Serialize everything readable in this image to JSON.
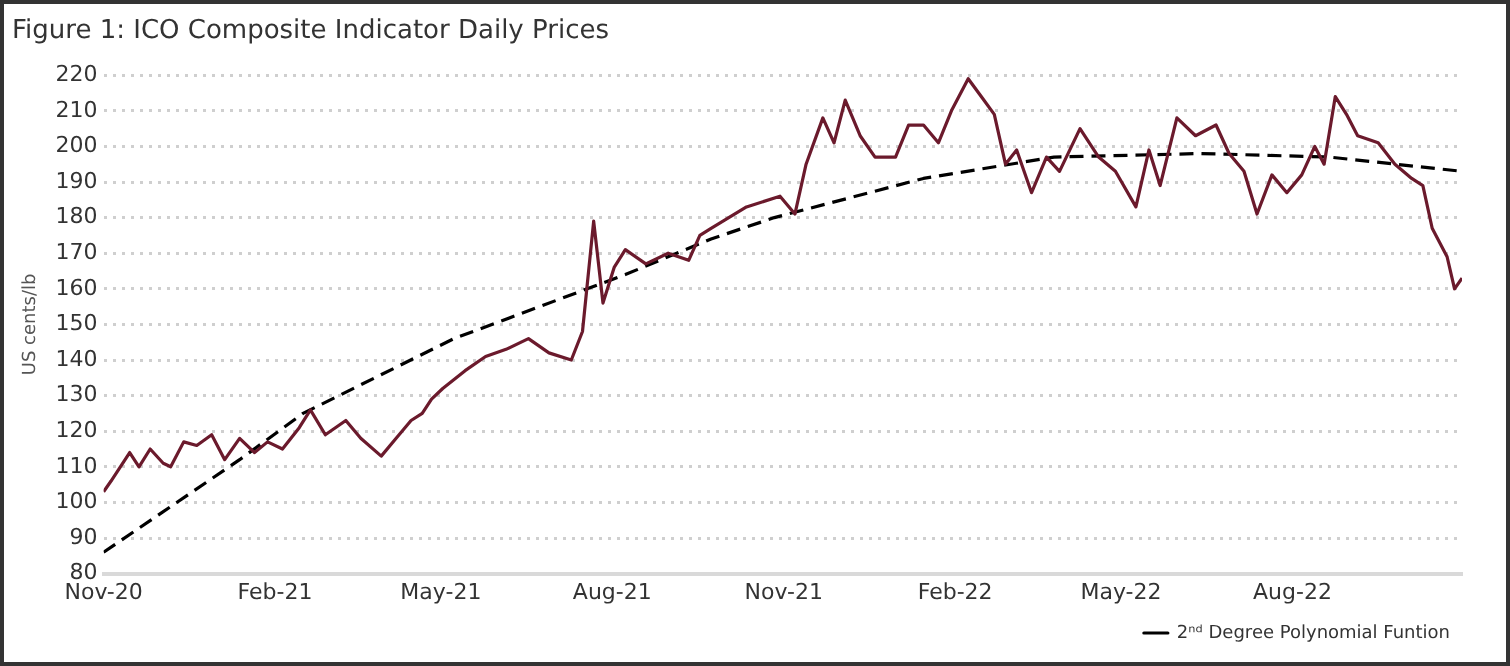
{
  "chart_data": {
    "type": "line",
    "title": "Figure 1: ICO Composite Indicator Daily Prices",
    "ylabel": "US cents/lb",
    "xlim": [
      "2020-11-01",
      "2022-10-31"
    ],
    "xticks": [
      {
        "value": "2020-11-01",
        "label": "Nov-20"
      },
      {
        "value": "2021-02-01",
        "label": "Feb-21"
      },
      {
        "value": "2021-05-01",
        "label": "May-21"
      },
      {
        "value": "2021-08-01",
        "label": "Aug-21"
      },
      {
        "value": "2021-11-01",
        "label": "Nov-21"
      },
      {
        "value": "2022-02-01",
        "label": "Feb-22"
      },
      {
        "value": "2022-05-01",
        "label": "May-22"
      },
      {
        "value": "2022-08-01",
        "label": "Aug-22"
      }
    ],
    "ylim": [
      80,
      220
    ],
    "yticks": [
      80,
      90,
      100,
      110,
      120,
      130,
      140,
      150,
      160,
      170,
      180,
      190,
      200,
      210,
      220
    ],
    "grid": "y",
    "legend": "bottom right",
    "marker": "none",
    "series": [
      {
        "color": "#6b1a2c",
        "line_style": "solid",
        "x": [
          "2020-11-01",
          "2020-11-05",
          "2020-11-15",
          "2020-11-20",
          "2020-11-26",
          "2020-12-03",
          "2020-12-07",
          "2020-12-14",
          "2020-12-21",
          "2020-12-29",
          "2021-01-05",
          "2021-01-13",
          "2021-01-21",
          "2021-01-28",
          "2021-02-05",
          "2021-02-14",
          "2021-02-20",
          "2021-02-28",
          "2021-03-11",
          "2021-03-19",
          "2021-03-30",
          "2021-04-07",
          "2021-04-15",
          "2021-04-21",
          "2021-04-26",
          "2021-05-02",
          "2021-05-14",
          "2021-05-25",
          "2021-06-05",
          "2021-06-17",
          "2021-06-28",
          "2021-07-10",
          "2021-07-16",
          "2021-07-22",
          "2021-07-27",
          "2021-08-02",
          "2021-08-08",
          "2021-08-19",
          "2021-08-31",
          "2021-09-11",
          "2021-09-17",
          "2021-09-23",
          "2021-10-12",
          "2021-10-30",
          "2021-11-07",
          "2021-11-13",
          "2021-11-22",
          "2021-11-28",
          "2021-12-04",
          "2021-12-12",
          "2021-12-20",
          "2021-12-31",
          "2022-01-07",
          "2022-01-15",
          "2022-01-23",
          "2022-01-30",
          "2022-02-08",
          "2022-02-15",
          "2022-02-22",
          "2022-02-28",
          "2022-03-06",
          "2022-03-14",
          "2022-03-22",
          "2022-03-29",
          "2022-04-09",
          "2022-04-19",
          "2022-04-28",
          "2022-05-09",
          "2022-05-16",
          "2022-05-22",
          "2022-05-31",
          "2022-06-10",
          "2022-06-21",
          "2022-06-28",
          "2022-07-06",
          "2022-07-13",
          "2022-07-21",
          "2022-07-29",
          "2022-08-06",
          "2022-08-13",
          "2022-08-18",
          "2022-08-24",
          "2022-08-30",
          "2022-09-05",
          "2022-09-16",
          "2022-09-25",
          "2022-10-04",
          "2022-10-10",
          "2022-10-15",
          "2022-10-23",
          "2022-10-27",
          "2022-10-31"
        ],
        "values": [
          103,
          106,
          114,
          110,
          115,
          111,
          110,
          117,
          116,
          119,
          112,
          118,
          114,
          117,
          115,
          121,
          126,
          119,
          123,
          118,
          113,
          118,
          123,
          125,
          129,
          132,
          137,
          141,
          143,
          146,
          142,
          140,
          148,
          179,
          156,
          166,
          171,
          167,
          170,
          168,
          175,
          177,
          183,
          186,
          181,
          195,
          208,
          201,
          213,
          203,
          197,
          197,
          206,
          206,
          201,
          210,
          219,
          214,
          209,
          195,
          199,
          187,
          197,
          193,
          205,
          197,
          193,
          183,
          199,
          189,
          208,
          203,
          206,
          198,
          193,
          181,
          192,
          187,
          192,
          200,
          195,
          214,
          209,
          203,
          201,
          195,
          191,
          189,
          177,
          169,
          160,
          163
        ]
      },
      {
        "name": "2ⁿᵈ Degree Polynomial Funtion",
        "color": "#000000",
        "line_style": "dashed",
        "x": [
          "2020-11-01",
          "2021-01-13",
          "2021-02-16",
          "2021-05-08",
          "2021-08-08",
          "2021-09-23",
          "2021-10-27",
          "2022-01-15",
          "2022-03-26",
          "2022-06-13",
          "2022-08-21",
          "2022-10-31"
        ],
        "values": [
          86,
          112,
          125,
          146,
          164,
          174,
          180,
          191,
          197,
          198,
          197,
          193
        ]
      }
    ]
  }
}
